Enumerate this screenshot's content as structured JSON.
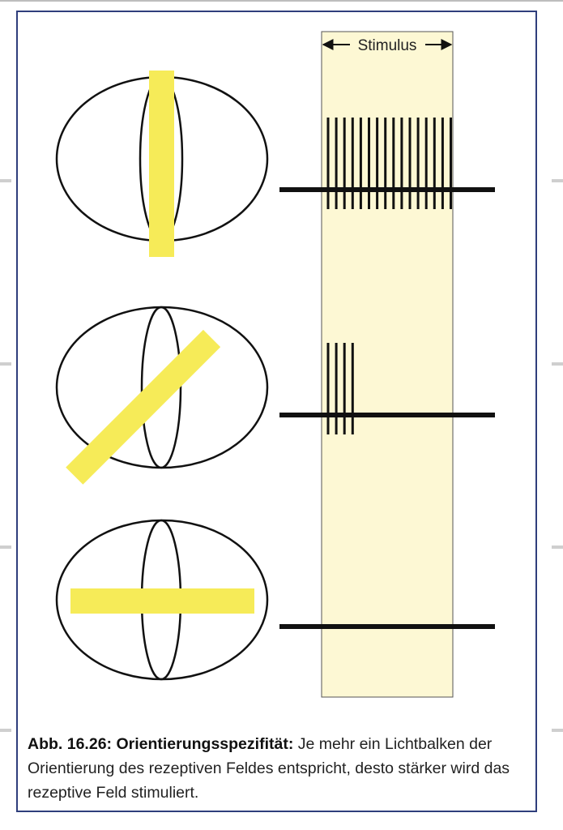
{
  "stimulus_label": "Stimulus",
  "caption": {
    "label": "Abb. 16.26: Orientierungsspezifität:",
    "text": "Je mehr ein Lichtbalken der Orientierung des rezeptiven Feldes entspricht, desto stärker wird das rezeptive Feld stimuliert."
  },
  "colors": {
    "frame": "#2f3e7c",
    "light_bar": "#f6eb58",
    "stimulus_window": "#fdf8d4",
    "spikes": "#111111"
  },
  "rows": [
    {
      "bar_orientation_deg": 90,
      "spike_count": 16
    },
    {
      "bar_orientation_deg": 45,
      "spike_count": 4
    },
    {
      "bar_orientation_deg": 0,
      "spike_count": 0
    }
  ]
}
